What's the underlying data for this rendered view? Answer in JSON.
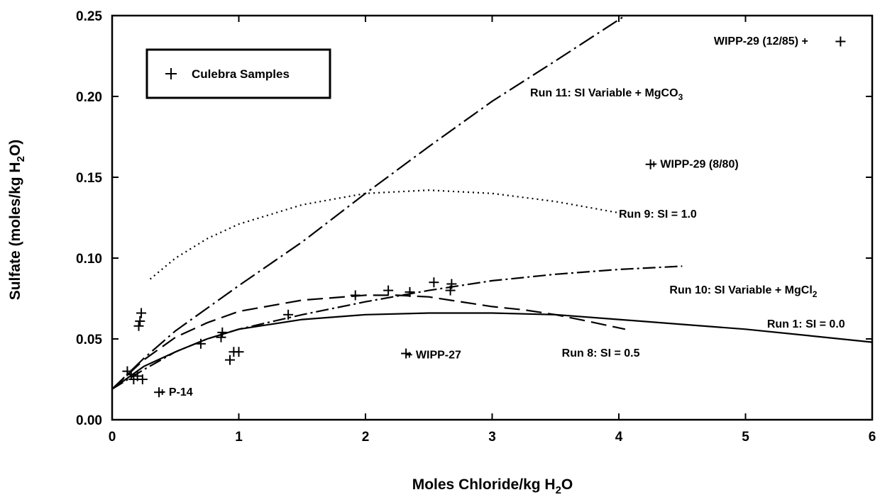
{
  "chart_data": {
    "type": "scatter",
    "xlabel_main": "Moles Chloride/kg H",
    "xlabel_sub": "2",
    "xlabel_end": "O",
    "ylabel_main": "Sulfate (moles/kg H",
    "ylabel_sub": "2",
    "ylabel_end": "O)",
    "xlim": [
      0,
      6
    ],
    "ylim": [
      0,
      0.25
    ],
    "x_ticks": [
      0,
      1,
      2,
      3,
      4,
      5,
      6
    ],
    "x_tick_labels": [
      "0",
      "1",
      "2",
      "3",
      "4",
      "5",
      "6"
    ],
    "y_ticks": [
      0,
      0.05,
      0.1,
      0.15,
      0.2,
      0.25
    ],
    "y_tick_labels": [
      "0.00",
      "0.05",
      "0.10",
      "0.15",
      "0.20",
      "0.25"
    ],
    "grid": false,
    "legend": {
      "placement": "top-left",
      "entries": [
        "Culebra Samples"
      ]
    },
    "samples": [
      {
        "x": 0.12,
        "y": 0.03
      },
      {
        "x": 0.15,
        "y": 0.028
      },
      {
        "x": 0.17,
        "y": 0.025
      },
      {
        "x": 0.2,
        "y": 0.027
      },
      {
        "x": 0.24,
        "y": 0.025
      },
      {
        "x": 0.21,
        "y": 0.058
      },
      {
        "x": 0.22,
        "y": 0.061
      },
      {
        "x": 0.23,
        "y": 0.066
      },
      {
        "x": 0.37,
        "y": 0.017
      },
      {
        "x": 0.7,
        "y": 0.047
      },
      {
        "x": 0.86,
        "y": 0.051
      },
      {
        "x": 0.87,
        "y": 0.054
      },
      {
        "x": 0.93,
        "y": 0.037
      },
      {
        "x": 0.96,
        "y": 0.042
      },
      {
        "x": 1.0,
        "y": 0.042
      },
      {
        "x": 1.39,
        "y": 0.065
      },
      {
        "x": 1.92,
        "y": 0.077
      },
      {
        "x": 2.18,
        "y": 0.08
      },
      {
        "x": 2.32,
        "y": 0.041
      },
      {
        "x": 2.35,
        "y": 0.079
      },
      {
        "x": 2.54,
        "y": 0.085
      },
      {
        "x": 2.67,
        "y": 0.08
      },
      {
        "x": 2.68,
        "y": 0.084
      },
      {
        "x": 4.25,
        "y": 0.158
      },
      {
        "x": 5.75,
        "y": 0.234
      }
    ],
    "series": [
      {
        "label": "Run 1: SI = 0.0",
        "dash": "",
        "points": [
          [
            0,
            0.019
          ],
          [
            0.25,
            0.033
          ],
          [
            0.5,
            0.042
          ],
          [
            0.75,
            0.05
          ],
          [
            1,
            0.056
          ],
          [
            1.5,
            0.062
          ],
          [
            2,
            0.065
          ],
          [
            2.5,
            0.066
          ],
          [
            3,
            0.066
          ],
          [
            3.5,
            0.065
          ],
          [
            4,
            0.062
          ],
          [
            4.5,
            0.059
          ],
          [
            5,
            0.056
          ],
          [
            5.5,
            0.052
          ],
          [
            6,
            0.048
          ]
        ]
      },
      {
        "label": "Run 8: SI = 0.5",
        "dash": "22 9",
        "points": [
          [
            0,
            0.019
          ],
          [
            0.25,
            0.037
          ],
          [
            0.5,
            0.051
          ],
          [
            0.75,
            0.06
          ],
          [
            1,
            0.067
          ],
          [
            1.5,
            0.074
          ],
          [
            2,
            0.077
          ],
          [
            2.25,
            0.077
          ],
          [
            2.5,
            0.076
          ],
          [
            2.75,
            0.073
          ],
          [
            3,
            0.07
          ],
          [
            3.25,
            0.068
          ],
          [
            3.5,
            0.065
          ],
          [
            3.75,
            0.061
          ],
          [
            4.05,
            0.056
          ]
        ]
      },
      {
        "label": "Run 9: SI = 1.0",
        "dash": "2 5",
        "points": [
          [
            0.3,
            0.087
          ],
          [
            0.5,
            0.1
          ],
          [
            0.75,
            0.112
          ],
          [
            1,
            0.121
          ],
          [
            1.5,
            0.133
          ],
          [
            2,
            0.14
          ],
          [
            2.5,
            0.142
          ],
          [
            3,
            0.14
          ],
          [
            3.5,
            0.135
          ],
          [
            4,
            0.128
          ]
        ]
      },
      {
        "label": "Run 10: SI Variable + MgCl2",
        "dash": "18 5 3 5",
        "points": [
          [
            0,
            0.019
          ],
          [
            0.25,
            0.031
          ],
          [
            0.5,
            0.042
          ],
          [
            0.75,
            0.05
          ],
          [
            1,
            0.056
          ],
          [
            1.5,
            0.065
          ],
          [
            2,
            0.073
          ],
          [
            2.5,
            0.08
          ],
          [
            3,
            0.086
          ],
          [
            3.5,
            0.09
          ],
          [
            4,
            0.093
          ],
          [
            4.5,
            0.095
          ]
        ]
      },
      {
        "label": "Run 11: SI Variable + MgCO3",
        "dash": "24 6 3 6",
        "points": [
          [
            0,
            0.019
          ],
          [
            0.25,
            0.038
          ],
          [
            0.5,
            0.055
          ],
          [
            1,
            0.083
          ],
          [
            1.5,
            0.11
          ],
          [
            2,
            0.14
          ],
          [
            2.5,
            0.169
          ],
          [
            3,
            0.197
          ],
          [
            3.5,
            0.222
          ],
          [
            4.05,
            0.25
          ]
        ]
      }
    ],
    "annotations": [
      {
        "text": "Run 11:  SI Variable + MgCO",
        "sub": "3",
        "x": 3.3,
        "y": 0.2
      },
      {
        "text": "WIPP-29 (12/85) +",
        "sub": "",
        "x": 4.75,
        "y": 0.232
      },
      {
        "text": "+ WIPP-29 (8/80)",
        "sub": "",
        "x": 4.25,
        "y": 0.156
      },
      {
        "text": "Run 9:  SI = 1.0",
        "sub": "",
        "x": 4.0,
        "y": 0.125
      },
      {
        "text": "Run 10:  SI Variable + MgCl",
        "sub": "2",
        "x": 4.4,
        "y": 0.078
      },
      {
        "text": "Run 1:  SI = 0.0",
        "sub": "",
        "x": 5.17,
        "y": 0.057
      },
      {
        "text": "Run 8:  SI = 0.5",
        "sub": "",
        "x": 3.55,
        "y": 0.039
      },
      {
        "text": "+ WIPP-27",
        "sub": "",
        "x": 2.32,
        "y": 0.038
      },
      {
        "text": "+ P-14",
        "sub": "",
        "x": 0.37,
        "y": 0.015
      }
    ]
  }
}
